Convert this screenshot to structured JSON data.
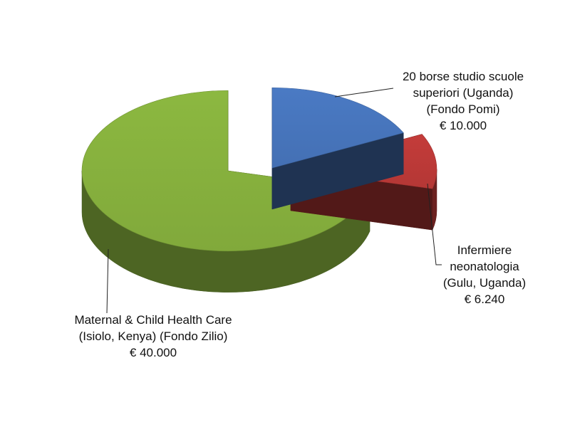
{
  "chart_data": {
    "type": "pie",
    "style": "3d-exploded",
    "title": "",
    "legend": "none",
    "series": [
      {
        "name": "",
        "slices": [
          {
            "label_lines": [
              "20 borse studio scuole",
              "superiori (Uganda)",
              "(Fondo Pomi)",
              "€ 10.000"
            ],
            "value": 10000,
            "color": "#4a7ac4"
          },
          {
            "label_lines": [
              "Infermiere",
              "neonatologia",
              "(Gulu, Uganda)",
              "€ 6.240"
            ],
            "value": 6240,
            "color": "#c43c3a"
          },
          {
            "label_lines": [
              "Maternal & Child Health Care",
              "(Isiolo, Kenya) (Fondo Zilio)",
              "€ 40.000"
            ],
            "value": 40000,
            "color": "#8cb840"
          }
        ]
      }
    ]
  }
}
